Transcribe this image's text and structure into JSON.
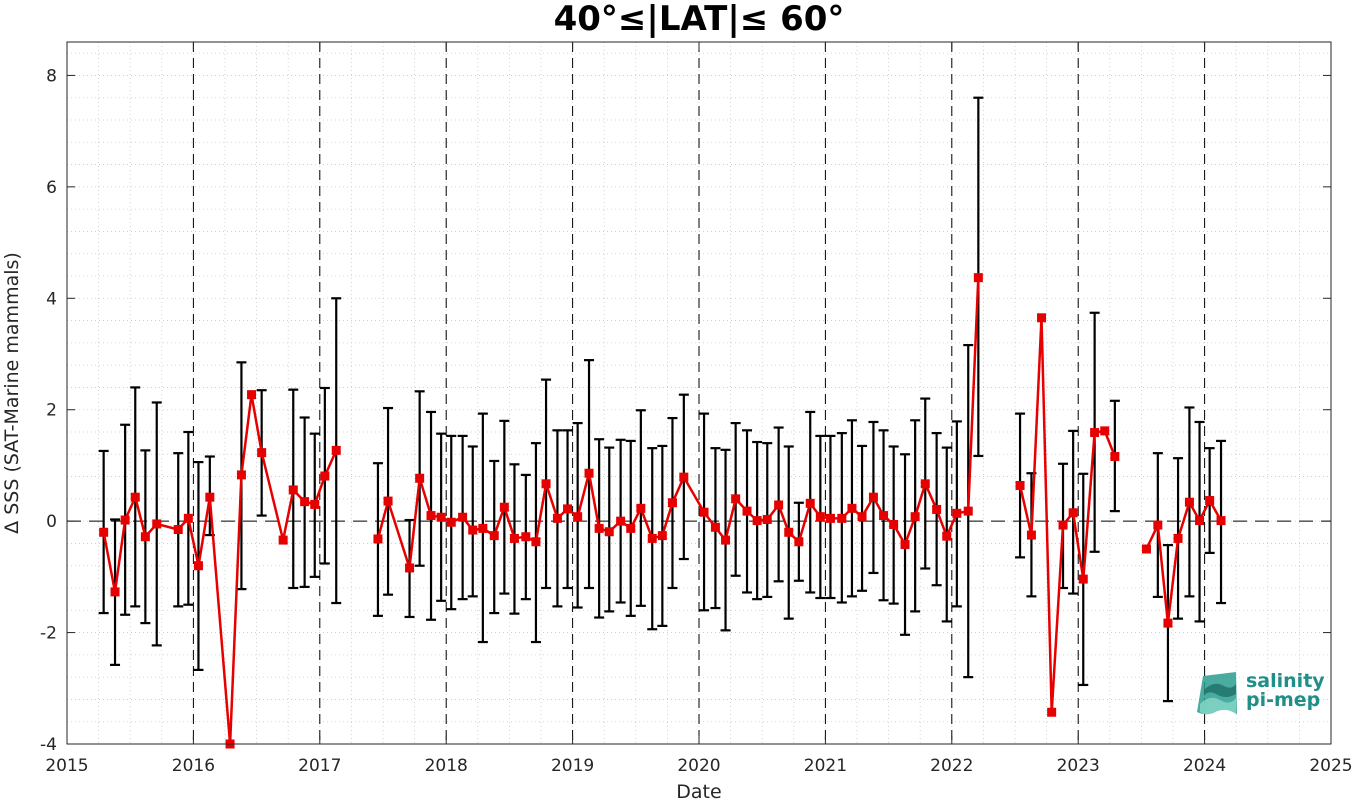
{
  "chart_data": {
    "type": "line",
    "title": "40°≤|LAT|≤ 60°",
    "xlabel": "Date",
    "ylabel": "Δ SSS (SAT-Marine mammals)",
    "xlim": [
      2015,
      2025
    ],
    "ylim": [
      -4,
      8.6
    ],
    "x_ticks": [
      "2015",
      "2016",
      "2017",
      "2018",
      "2019",
      "2020",
      "2021",
      "2022",
      "2023",
      "2024",
      "2025"
    ],
    "y_ticks": [
      "-4",
      "-2",
      "0",
      "2",
      "4",
      "6",
      "8"
    ],
    "grid": true,
    "colors": {
      "series": "#e60000",
      "errorbar": "#000000",
      "year_line": "#000000"
    },
    "series": [
      {
        "x": [
          2015.29,
          2015.38,
          2015.46,
          2015.54,
          2015.62,
          2015.71,
          2015.88,
          2015.96,
          2016.04,
          2016.13,
          2016.29,
          2016.38,
          2016.46,
          2016.54,
          2016.71,
          2016.79,
          2016.88,
          2016.96,
          2017.04,
          2017.13,
          2017.46,
          2017.54,
          2017.71,
          2017.79,
          2017.88,
          2017.96,
          2018.04,
          2018.13,
          2018.21,
          2018.29,
          2018.38,
          2018.46,
          2018.54,
          2018.63,
          2018.71,
          2018.79,
          2018.88,
          2018.96,
          2019.04,
          2019.13,
          2019.21,
          2019.29,
          2019.38,
          2019.46,
          2019.54,
          2019.63,
          2019.71,
          2019.79,
          2019.88,
          2020.04,
          2020.13,
          2020.21,
          2020.29,
          2020.38,
          2020.46,
          2020.54,
          2020.63,
          2020.71,
          2020.79,
          2020.88,
          2020.96,
          2021.04,
          2021.13,
          2021.21,
          2021.29,
          2021.38,
          2021.46,
          2021.54,
          2021.63,
          2021.71,
          2021.79,
          2021.88,
          2021.96,
          2022.04,
          2022.13,
          2022.21,
          2022.54,
          2022.63,
          2022.71,
          2022.79,
          2022.88,
          2022.96,
          2023.04,
          2023.13,
          2023.21,
          2023.29,
          2023.54,
          2023.63,
          2023.71,
          2023.79,
          2023.88,
          2023.96,
          2024.04,
          2024.13
        ],
        "y": [
          -0.2,
          -1.27,
          0.02,
          0.43,
          -0.28,
          -0.05,
          -0.15,
          0.05,
          -0.8,
          0.43,
          -4.0,
          0.83,
          2.27,
          1.23,
          -0.34,
          0.56,
          0.35,
          0.3,
          0.81,
          1.27,
          -0.32,
          0.36,
          -0.84,
          0.77,
          0.1,
          0.07,
          -0.02,
          0.07,
          -0.16,
          -0.13,
          -0.26,
          0.25,
          -0.31,
          -0.28,
          -0.37,
          0.67,
          0.05,
          0.22,
          0.08,
          0.86,
          -0.13,
          -0.19,
          0.0,
          -0.13,
          0.23,
          -0.31,
          -0.26,
          0.33,
          0.79,
          0.16,
          -0.11,
          -0.34,
          0.4,
          0.18,
          0.01,
          0.03,
          0.29,
          -0.2,
          -0.37,
          0.32,
          0.08,
          0.05,
          0.05,
          0.23,
          0.08,
          0.43,
          0.1,
          -0.06,
          -0.42,
          0.08,
          0.67,
          0.21,
          -0.27,
          0.14,
          0.18,
          4.37,
          0.64,
          -0.25,
          3.65,
          -3.43,
          -0.07,
          0.15,
          -1.04,
          1.59,
          1.62,
          1.16,
          -0.5,
          -0.07,
          -1.83,
          -0.31,
          0.34,
          0.01,
          0.37,
          0.01
        ],
        "err_low": [
          -1.65,
          -2.58,
          -1.68,
          -1.53,
          -1.83,
          -2.23,
          -1.53,
          -1.5,
          -2.67,
          -0.25,
          -4.0,
          -1.22,
          2.27,
          0.1,
          -0.34,
          -1.2,
          -1.18,
          -1.0,
          -0.76,
          -1.47,
          -1.7,
          -1.32,
          -1.72,
          -0.8,
          -1.77,
          -1.43,
          -1.58,
          -1.4,
          -1.35,
          -2.17,
          -1.65,
          -1.3,
          -1.66,
          -1.4,
          -2.17,
          -1.2,
          -1.53,
          -1.2,
          -1.55,
          -1.2,
          -1.73,
          -1.62,
          -1.46,
          -1.7,
          -1.52,
          -1.94,
          -1.88,
          -1.2,
          -0.68,
          -1.6,
          -1.56,
          -1.96,
          -0.98,
          -1.28,
          -1.4,
          -1.36,
          -1.08,
          -1.75,
          -1.07,
          -1.28,
          -1.38,
          -1.38,
          -1.46,
          -1.35,
          -1.25,
          -0.93,
          -1.42,
          -1.48,
          -2.04,
          -1.62,
          -0.85,
          -1.15,
          -1.8,
          -1.53,
          -2.8,
          1.17,
          -0.65,
          -1.35,
          3.65,
          -3.43,
          -1.2,
          -1.3,
          -2.94,
          -0.55,
          1.62,
          0.18,
          -0.5,
          -1.36,
          -3.23,
          -1.75,
          -1.35,
          -1.8,
          -0.57,
          -1.47
        ],
        "err_high": [
          1.26,
          0.03,
          1.73,
          2.4,
          1.27,
          2.13,
          1.22,
          1.6,
          1.06,
          1.16,
          -4.0,
          2.85,
          2.27,
          2.35,
          -0.34,
          2.36,
          1.86,
          1.57,
          2.39,
          4.0,
          1.04,
          2.03,
          0.02,
          2.33,
          1.96,
          1.57,
          1.53,
          1.53,
          1.34,
          1.93,
          1.08,
          1.8,
          1.02,
          0.83,
          1.4,
          2.54,
          1.63,
          1.63,
          1.76,
          2.89,
          1.47,
          1.32,
          1.46,
          1.44,
          1.99,
          1.31,
          1.35,
          1.85,
          2.27,
          1.93,
          1.31,
          1.28,
          1.76,
          1.63,
          1.42,
          1.4,
          1.68,
          1.34,
          0.33,
          1.96,
          1.53,
          1.53,
          1.58,
          1.81,
          1.35,
          1.78,
          1.63,
          1.34,
          1.2,
          1.81,
          2.2,
          1.58,
          1.32,
          1.79,
          3.16,
          7.6,
          1.93,
          0.86,
          3.65,
          -3.43,
          1.03,
          1.62,
          0.85,
          3.74,
          1.62,
          2.16,
          -0.5,
          1.22,
          -0.43,
          1.13,
          2.04,
          1.78,
          1.31,
          1.44
        ]
      }
    ],
    "logo": {
      "line1": "salinity",
      "line2": "pi-mep"
    }
  }
}
